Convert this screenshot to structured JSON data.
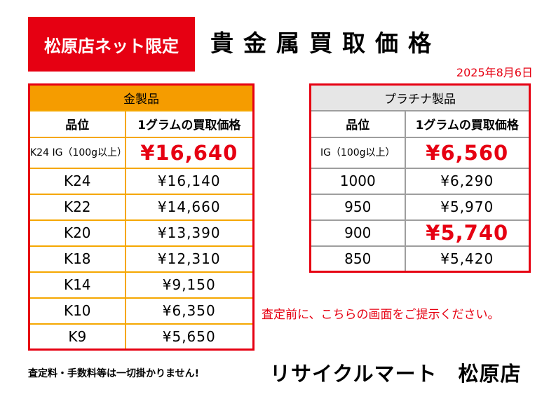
{
  "header": {
    "badge": "松原店ネット限定",
    "title": "貴金属買取価格",
    "date": "2025年8月6日"
  },
  "gold": {
    "heading": "金製品",
    "col_grade": "品位",
    "col_price": "1グラムの買取価格",
    "rows": [
      {
        "grade": "K24 IG（100g以上）",
        "price": "¥16,640",
        "highlight": true
      },
      {
        "grade": "K24",
        "price": "¥16,140"
      },
      {
        "grade": "K22",
        "price": "¥14,660"
      },
      {
        "grade": "K20",
        "price": "¥13,390"
      },
      {
        "grade": "K18",
        "price": "¥12,310"
      },
      {
        "grade": "K14",
        "price": "¥9,150"
      },
      {
        "grade": "K10",
        "price": "¥6,350"
      },
      {
        "grade": "K9",
        "price": "¥5,650"
      }
    ]
  },
  "platinum": {
    "heading": "プラチナ製品",
    "col_grade": "品位",
    "col_price": "1グラムの買取価格",
    "rows": [
      {
        "grade": "IG（100g以上）",
        "price": "¥6,560",
        "highlight": true
      },
      {
        "grade": "1000",
        "price": "¥6,290"
      },
      {
        "grade": "950",
        "price": "¥5,970"
      },
      {
        "grade": "900",
        "price": "¥5,740",
        "highlight": true
      },
      {
        "grade": "850",
        "price": "¥5,420"
      }
    ]
  },
  "notice": "査定前に、こちらの画面をご提示ください。",
  "footnote": "査定料・手数料等は一切掛かりません!",
  "shop_name": "リサイクルマート　松原店",
  "colors": {
    "red": "#e60012",
    "gold": "#f59c00",
    "gray": "#e6e6e6"
  }
}
